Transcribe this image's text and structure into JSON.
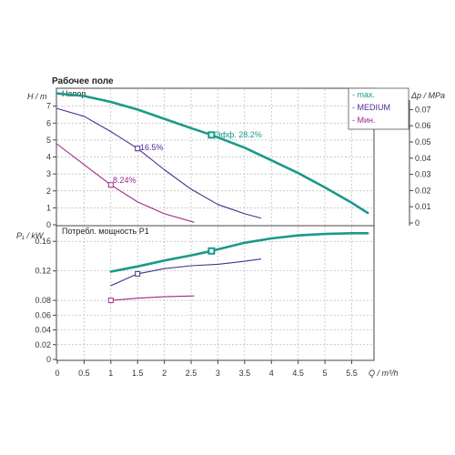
{
  "title": "Рабочее поле",
  "head_panel": {
    "label": "Напор",
    "y_label": "H / m",
    "y_ticks": [
      0,
      1,
      2,
      3,
      4,
      5,
      6,
      7
    ],
    "ylim": [
      0,
      8
    ],
    "right_label": "Δp / MPa",
    "right_ticks": [
      "0",
      "0.01",
      "0.02",
      "0.03",
      "0.04",
      "0.05",
      "0.06",
      "0.07"
    ]
  },
  "power_panel": {
    "label": "Потребл. мощность P1",
    "y_label": "P₁ / kW",
    "y_ticks": [
      "0",
      "0.02",
      "0.04",
      "0.06",
      "0.08",
      "0.12",
      "0.16"
    ],
    "ylim": [
      0,
      0.18
    ]
  },
  "x_axis": {
    "label": "Q / m³/h",
    "ticks": [
      "0",
      "0.5",
      "1",
      "1.5",
      "2",
      "2.5",
      "3",
      "3.5",
      "4",
      "4.5",
      "5",
      "5.5"
    ],
    "xlim": [
      0,
      5.9
    ]
  },
  "legend": [
    {
      "text": "- max.",
      "color": "#1a9a8a"
    },
    {
      "text": "- MEDIUM",
      "color": "#4b2d8f"
    },
    {
      "text": "- Мин.",
      "color": "#a0288a"
    }
  ],
  "annotations": {
    "max": "Эфф. 28.2%",
    "medium": "16.5%",
    "min": "8.24%"
  },
  "colors": {
    "max": "#1a9a8a",
    "medium": "#4b2d8f",
    "min": "#a0288a"
  },
  "chart_data": [
    {
      "type": "line",
      "title": "Напор",
      "xlabel": "Q / m³/h",
      "ylabel": "H / m",
      "xlim": [
        0,
        5.9
      ],
      "ylim": [
        0,
        8
      ],
      "series": [
        {
          "name": "max.",
          "x": [
            0,
            0.5,
            1,
            1.5,
            2,
            2.5,
            2.88,
            3.5,
            4,
            4.5,
            5,
            5.5,
            5.8
          ],
          "y": [
            7.75,
            7.6,
            7.25,
            6.8,
            6.25,
            5.7,
            5.3,
            4.55,
            3.8,
            3.05,
            2.2,
            1.3,
            0.7
          ]
        },
        {
          "name": "MEDIUM",
          "x": [
            0,
            0.5,
            1,
            1.5,
            2,
            2.5,
            3,
            3.5,
            3.8
          ],
          "y": [
            6.85,
            6.4,
            5.5,
            4.5,
            3.25,
            2.1,
            1.2,
            0.65,
            0.4
          ]
        },
        {
          "name": "Мин.",
          "x": [
            0,
            0.5,
            1,
            1.5,
            2,
            2.55
          ],
          "y": [
            4.75,
            3.55,
            2.35,
            1.35,
            0.65,
            0.15
          ]
        }
      ],
      "markers": [
        {
          "series": "max.",
          "x": 2.88,
          "y": 5.3,
          "label": "Эфф. 28.2%"
        },
        {
          "series": "MEDIUM",
          "x": 1.5,
          "y": 4.5,
          "label": "16.5%"
        },
        {
          "series": "Мин.",
          "x": 1.0,
          "y": 2.35,
          "label": "8.24%"
        }
      ]
    },
    {
      "type": "line",
      "title": "Потребл. мощность P1",
      "xlabel": "Q / m³/h",
      "ylabel": "P₁ / kW",
      "xlim": [
        0,
        5.9
      ],
      "ylim": [
        0,
        0.18
      ],
      "series": [
        {
          "name": "max.",
          "x": [
            1.0,
            1.5,
            2.0,
            2.5,
            2.88,
            3.5,
            4.0,
            4.5,
            5.0,
            5.5,
            5.8
          ],
          "y": [
            0.119,
            0.126,
            0.134,
            0.141,
            0.147,
            0.158,
            0.164,
            0.168,
            0.17,
            0.171,
            0.171
          ]
        },
        {
          "name": "MEDIUM",
          "x": [
            1.0,
            1.5,
            2.0,
            2.5,
            3.0,
            3.5,
            3.8
          ],
          "y": [
            0.1,
            0.116,
            0.123,
            0.127,
            0.129,
            0.133,
            0.136
          ]
        },
        {
          "name": "Мин.",
          "x": [
            1.0,
            1.5,
            2.0,
            2.55
          ],
          "y": [
            0.08,
            0.083,
            0.085,
            0.086
          ]
        }
      ],
      "markers": [
        {
          "series": "max.",
          "x": 2.88,
          "y": 0.147
        },
        {
          "series": "MEDIUM",
          "x": 1.5,
          "y": 0.116
        },
        {
          "series": "Мин.",
          "x": 1.0,
          "y": 0.08
        }
      ]
    }
  ]
}
